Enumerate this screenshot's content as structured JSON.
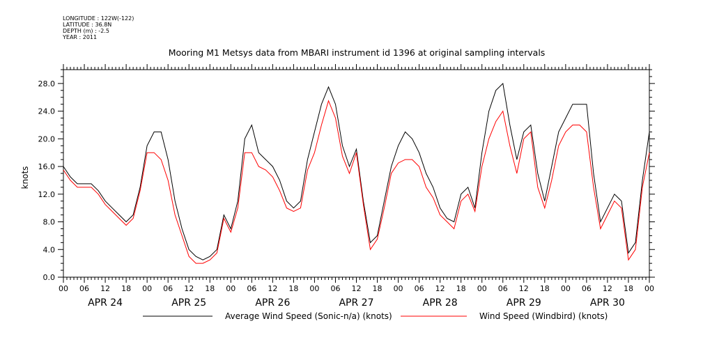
{
  "metadata": {
    "longitude": "LONGITUDE : 122W(-122)",
    "latitude": "LATITUDE : 36.8N",
    "depth": "DEPTH (m) : -2.5",
    "year": "YEAR : 2011"
  },
  "chart_data": {
    "type": "line",
    "title": "Mooring M1 Metsys data from MBARI instrument id 1396 at original sampling intervals",
    "xlabel": "",
    "ylabel": "knots",
    "ylim": [
      0,
      30
    ],
    "xlim_hours": [
      0,
      168
    ],
    "y_ticks": [
      "0.0",
      "4.0",
      "8.0",
      "12.0",
      "16.0",
      "20.0",
      "24.0",
      "28.0"
    ],
    "x_hour_ticks": [
      "00",
      "06",
      "12",
      "18",
      "00",
      "06",
      "12",
      "18",
      "00",
      "06",
      "12",
      "18",
      "00",
      "06",
      "12",
      "18",
      "00",
      "06",
      "12",
      "18",
      "00",
      "06",
      "12",
      "18",
      "00",
      "06",
      "12",
      "18",
      "00"
    ],
    "day_labels": [
      "APR 24",
      "APR 25",
      "APR 26",
      "APR 27",
      "APR 28",
      "APR 29",
      "APR 30"
    ],
    "grid": false,
    "legend_placement": "bottom",
    "x_unit": "hours since APR 24 00",
    "series": [
      {
        "name": "Average Wind Speed (Sonic-n/a) (knots)",
        "color": "#000000",
        "x": [
          0,
          2,
          4,
          6,
          8,
          10,
          12,
          14,
          16,
          18,
          20,
          22,
          24,
          26,
          28,
          30,
          32,
          34,
          36,
          38,
          40,
          42,
          44,
          46,
          48,
          50,
          52,
          54,
          56,
          58,
          60,
          62,
          64,
          66,
          68,
          70,
          72,
          74,
          76,
          78,
          80,
          82,
          84,
          86,
          88,
          90,
          92,
          94,
          96,
          98,
          100,
          102,
          104,
          106,
          108,
          110,
          112,
          114,
          116,
          118,
          120,
          122,
          124,
          126,
          128,
          130,
          132,
          134,
          136,
          138,
          140,
          142,
          144,
          146,
          148,
          150,
          152,
          154,
          156,
          158,
          160,
          162,
          164,
          166,
          168
        ],
        "values": [
          16.0,
          14.5,
          13.5,
          13.5,
          13.5,
          12.5,
          11.0,
          10.0,
          9.0,
          8.0,
          9.0,
          13.0,
          19.0,
          21.0,
          21.0,
          17.0,
          11.0,
          7.0,
          4.0,
          3.0,
          2.5,
          3.0,
          4.0,
          9.0,
          7.0,
          11.0,
          20.0,
          22.0,
          18.0,
          17.0,
          16.0,
          14.0,
          11.0,
          10.0,
          11.0,
          17.0,
          21.0,
          25.0,
          27.5,
          25.0,
          19.0,
          16.0,
          18.5,
          11.0,
          5.0,
          6.0,
          11.0,
          16.0,
          19.0,
          21.0,
          20.0,
          18.0,
          15.0,
          13.0,
          10.0,
          8.5,
          8.0,
          12.0,
          13.0,
          10.0,
          18.0,
          24.0,
          27.0,
          28.0,
          22.0,
          17.0,
          21.0,
          22.0,
          15.0,
          11.0,
          16.0,
          21.0,
          23.0,
          25.0,
          25.0,
          25.0,
          15.0,
          8.0,
          10.0,
          12.0,
          11.0,
          3.5,
          5.0,
          14.0,
          21.0
        ],
        "peaks_note": ""
      },
      {
        "name": "Wind Speed (Windbird) (knots)",
        "color": "#ff0000",
        "x": [
          0,
          2,
          4,
          6,
          8,
          10,
          12,
          14,
          16,
          18,
          20,
          22,
          24,
          26,
          28,
          30,
          32,
          34,
          36,
          38,
          40,
          42,
          44,
          46,
          48,
          50,
          52,
          54,
          56,
          58,
          60,
          62,
          64,
          66,
          68,
          70,
          72,
          74,
          76,
          78,
          80,
          82,
          84,
          86,
          88,
          90,
          92,
          94,
          96,
          98,
          100,
          102,
          104,
          106,
          108,
          110,
          112,
          114,
          116,
          118,
          120,
          122,
          124,
          126,
          128,
          130,
          132,
          134,
          136,
          138,
          140,
          142,
          144,
          146,
          148,
          150,
          152,
          154,
          156,
          158,
          160,
          162,
          164,
          166,
          168
        ],
        "values": [
          15.5,
          14.0,
          13.0,
          13.0,
          13.0,
          12.0,
          10.5,
          9.5,
          8.5,
          7.5,
          8.5,
          12.5,
          18.0,
          18.0,
          17.0,
          14.0,
          9.0,
          6.0,
          3.0,
          2.0,
          2.0,
          2.5,
          3.5,
          8.5,
          6.5,
          10.0,
          18.0,
          18.0,
          16.0,
          15.5,
          14.5,
          12.5,
          10.0,
          9.5,
          10.0,
          15.5,
          18.0,
          22.0,
          25.5,
          23.0,
          17.5,
          15.0,
          18.0,
          10.5,
          4.0,
          5.5,
          10.0,
          15.0,
          16.5,
          17.0,
          17.0,
          16.0,
          13.0,
          11.5,
          9.0,
          8.0,
          7.0,
          11.0,
          12.0,
          9.5,
          16.0,
          20.0,
          22.5,
          24.0,
          19.0,
          15.0,
          20.0,
          21.0,
          13.0,
          10.0,
          14.0,
          19.0,
          21.0,
          22.0,
          22.0,
          21.0,
          13.0,
          7.0,
          9.0,
          11.0,
          10.0,
          2.5,
          4.0,
          13.0,
          18.0
        ]
      }
    ]
  }
}
